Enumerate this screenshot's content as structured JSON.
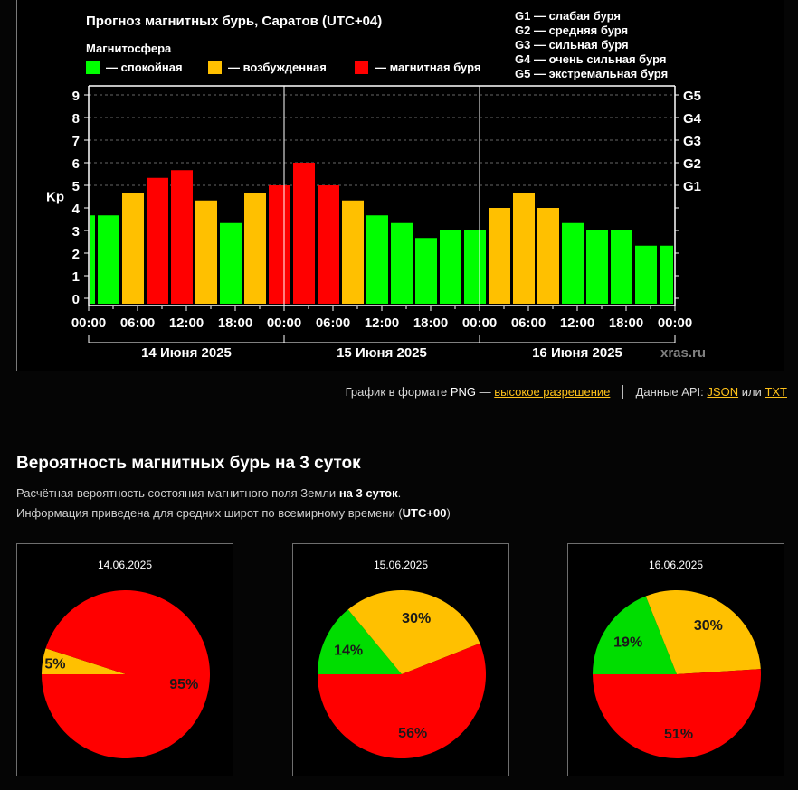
{
  "chart_data": [
    {
      "type": "bar",
      "title": "Прогноз магнитных бурь, Саратов (UTC+04)",
      "legend_title": "Магнитосфера",
      "legend": [
        {
          "label": "— спокойная",
          "color": "#00ff00"
        },
        {
          "label": "— возбужденная",
          "color": "#ffc000"
        },
        {
          "label": "— магнитная буря",
          "color": "#ff0000"
        }
      ],
      "g_scale_legend": [
        "G1 — слабая буря",
        "G2 — средняя буря",
        "G3 — сильная буря",
        "G4 — очень сильная буря",
        "G5 — экстремальная буря"
      ],
      "ylabel": "Kp",
      "ylim": [
        0,
        9
      ],
      "yticks": [
        "0",
        "1",
        "2",
        "3",
        "4",
        "5",
        "6",
        "7",
        "8",
        "9"
      ],
      "right_ticks": [
        {
          "value": 5,
          "label": "G1"
        },
        {
          "value": 6,
          "label": "G2"
        },
        {
          "value": 7,
          "label": "G3"
        },
        {
          "value": 8,
          "label": "G4"
        },
        {
          "value": 9,
          "label": "G5"
        }
      ],
      "x_range_hours": [
        0,
        72
      ],
      "xticks": [
        "00:00",
        "06:00",
        "12:00",
        "18:00",
        "00:00",
        "06:00",
        "12:00",
        "18:00",
        "00:00",
        "06:00",
        "12:00",
        "18:00",
        "00:00"
      ],
      "days": [
        "14 Июня 2025",
        "15 Июня 2025",
        "16 Июня 2025"
      ],
      "grid": true,
      "watermark": "xras.ru",
      "bar_interval_hours": 3,
      "first_bar_start_hour": -2,
      "values": [
        3.67,
        3.67,
        4.67,
        5.33,
        5.67,
        4.33,
        3.33,
        4.67,
        5.0,
        6.0,
        5.0,
        4.33,
        3.67,
        3.33,
        2.67,
        3.0,
        3.0,
        4.0,
        4.67,
        4.0,
        3.33,
        3.0,
        3.0,
        2.33,
        2.33
      ],
      "levels": [
        "quiet",
        "quiet",
        "active",
        "storm",
        "storm",
        "active",
        "quiet",
        "active",
        "storm",
        "storm",
        "storm",
        "active",
        "quiet",
        "quiet",
        "quiet",
        "quiet",
        "quiet",
        "active",
        "active",
        "active",
        "quiet",
        "quiet",
        "quiet",
        "quiet",
        "quiet"
      ]
    },
    {
      "type": "pie",
      "title": "14.06.2025",
      "slices": [
        {
          "name": "спокойная",
          "value": 0,
          "color": "#00dd00",
          "label": ""
        },
        {
          "name": "возбужденная",
          "value": 5,
          "color": "#ffc000",
          "label": "5%"
        },
        {
          "name": "магнитная буря",
          "value": 95,
          "color": "#ff0000",
          "label": "95%"
        }
      ]
    },
    {
      "type": "pie",
      "title": "15.06.2025",
      "slices": [
        {
          "name": "спокойная",
          "value": 14,
          "color": "#00dd00",
          "label": "14%"
        },
        {
          "name": "возбужденная",
          "value": 30,
          "color": "#ffc000",
          "label": "30%"
        },
        {
          "name": "магнитная буря",
          "value": 56,
          "color": "#ff0000",
          "label": "56%"
        }
      ]
    },
    {
      "type": "pie",
      "title": "16.06.2025",
      "slices": [
        {
          "name": "спокойная",
          "value": 19,
          "color": "#00dd00",
          "label": "19%"
        },
        {
          "name": "возбужденная",
          "value": 30,
          "color": "#ffc000",
          "label": "30%"
        },
        {
          "name": "магнитная буря",
          "value": 51,
          "color": "#ff0000",
          "label": "51%"
        }
      ]
    }
  ],
  "colors": {
    "quiet": "#00ff00",
    "active": "#ffc000",
    "storm": "#ff0000",
    "link": "#ffc21a"
  },
  "links": {
    "png_prefix": "График в формате",
    "png_word": "PNG",
    "png_dash": "—",
    "png_link": "высокое разрешение",
    "api_label": "Данные API:",
    "json_link": "JSON",
    "or": "или",
    "txt_link": "TXT"
  },
  "section": {
    "title": "Вероятность магнитных бурь на 3 суток",
    "line1_text": "Расчётная вероятность состояния магнитного поля Земли",
    "line1_bold": "на 3 суток",
    "line1_end": ".",
    "line2_text": "Информация приведена для средних широт по всемирному времени (",
    "line2_bold": "UTC+00",
    "line2_end": ")"
  }
}
